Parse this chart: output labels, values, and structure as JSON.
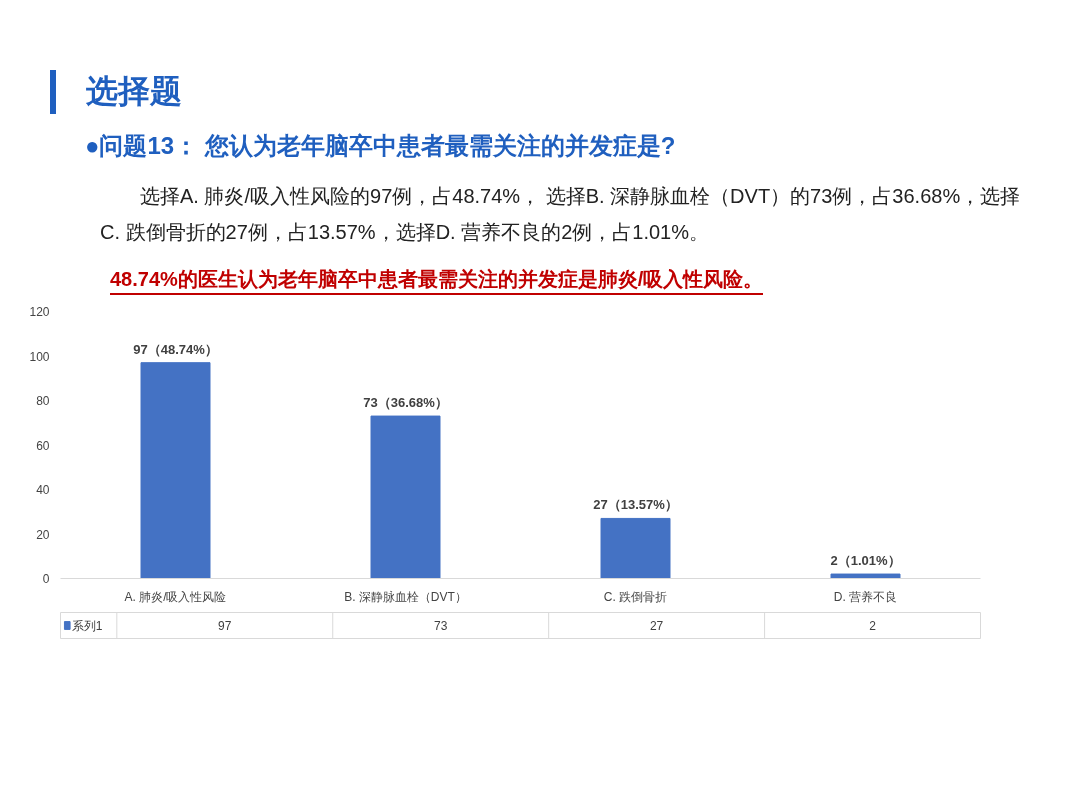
{
  "chart_data": {
    "type": "bar",
    "title": "选择题",
    "subtitle": "●问题13：  您认为老年脑卒中患者最需关注的并发症是?",
    "annotations": [
      "选择A. 肺炎/吸入性风险的97例，占48.74%，   选择B. 深静脉血栓（DVT）的73例，占36.68%，选择C. 跌倒骨折的27例，占13.57%，选择D. 营养不良的2例，占1.01%。",
      "48.74%的医生认为老年脑卒中患者最需关注的并发症是肺炎/吸入性风险。",
      {
        "text": "97（48.74%）",
        "x": "A. 肺炎/吸入性风险",
        "y": 97
      },
      {
        "text": "73（36.68%）",
        "x": "B. 深静脉血栓（DVT）",
        "y": 73
      },
      {
        "text": "27（13.57%）",
        "x": "C. 跌倒骨折",
        "y": 27
      },
      {
        "text": "2（1.01%）",
        "x": "D. 营养不良",
        "y": 2
      }
    ],
    "categories": [
      "A. 肺炎/吸入性风险",
      "B. 深静脉血栓（DVT）",
      "C. 跌倒骨折",
      "D. 营养不良"
    ],
    "series": [
      {
        "name": "系列1",
        "color": "#4472c4",
        "values": [
          97,
          73,
          27,
          2
        ]
      }
    ],
    "data_labels": true,
    "legend": "bottom left",
    "grid": false,
    "ylim": [
      0,
      120
    ],
    "yticks": [
      0,
      20,
      40,
      60,
      80,
      100,
      120
    ]
  }
}
